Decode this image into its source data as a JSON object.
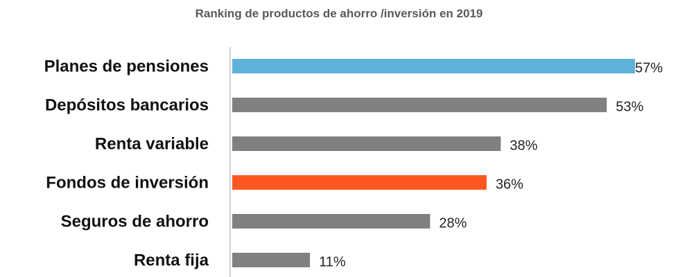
{
  "chart_data": {
    "type": "bar",
    "orientation": "horizontal",
    "title": "Ranking de productos de ahorro /inversión en 2019",
    "xlabel": "",
    "ylabel": "",
    "xlim": [
      0,
      57
    ],
    "grid": false,
    "categories": [
      "Planes de pensiones",
      "Depósitos bancarios",
      "Renta variable",
      "Fondos de inversión",
      "Seguros de ahorro",
      "Renta fija"
    ],
    "values": [
      57,
      53,
      38,
      36,
      28,
      11
    ],
    "value_labels": [
      "57%",
      "53%",
      "38%",
      "36%",
      "28%",
      "11%"
    ],
    "colors": [
      "#5fb3d9",
      "#808080",
      "#808080",
      "#ff5722",
      "#808080",
      "#808080"
    ]
  }
}
